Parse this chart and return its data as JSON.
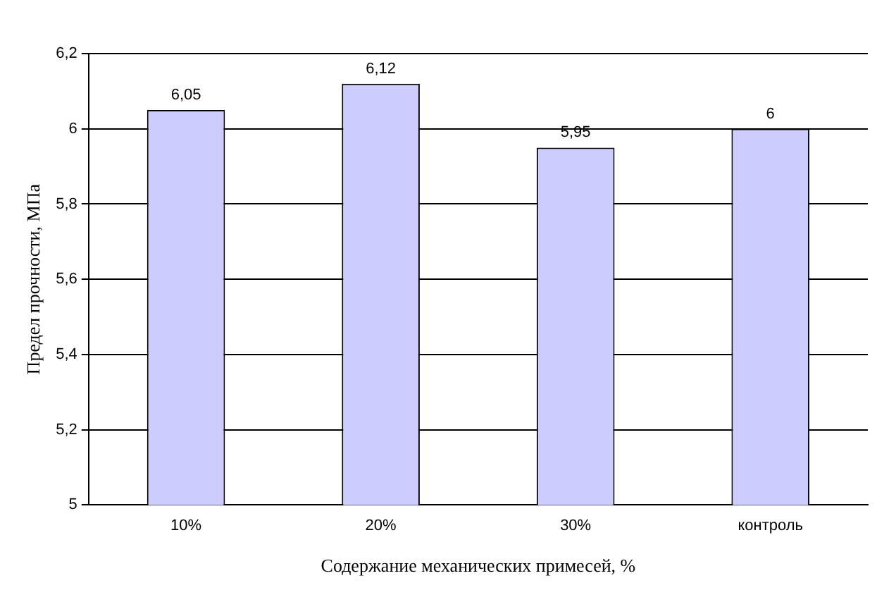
{
  "chart_data": {
    "type": "bar",
    "xlabel": "Содержание механических примесей, %",
    "ylabel": "Предел прочности, МПа",
    "categories": [
      "10%",
      "20%",
      "30%",
      "контроль"
    ],
    "values": [
      6.05,
      6.12,
      5.95,
      6
    ],
    "value_labels": [
      "6,05",
      "6,12",
      "5,95",
      "6"
    ],
    "color": "#ccccff",
    "ylim": [
      5,
      6.2
    ],
    "yticks": [
      5,
      {
        "value": 5.2,
        "label": "5,2"
      },
      {
        "value": 5.4,
        "label": "5,4"
      },
      {
        "value": 5.6,
        "label": "5,6"
      },
      {
        "value": 5.8,
        "label": "5,8"
      },
      6,
      {
        "value": 6.2,
        "label": "6,2"
      }
    ],
    "grid": "y",
    "legend": false
  }
}
